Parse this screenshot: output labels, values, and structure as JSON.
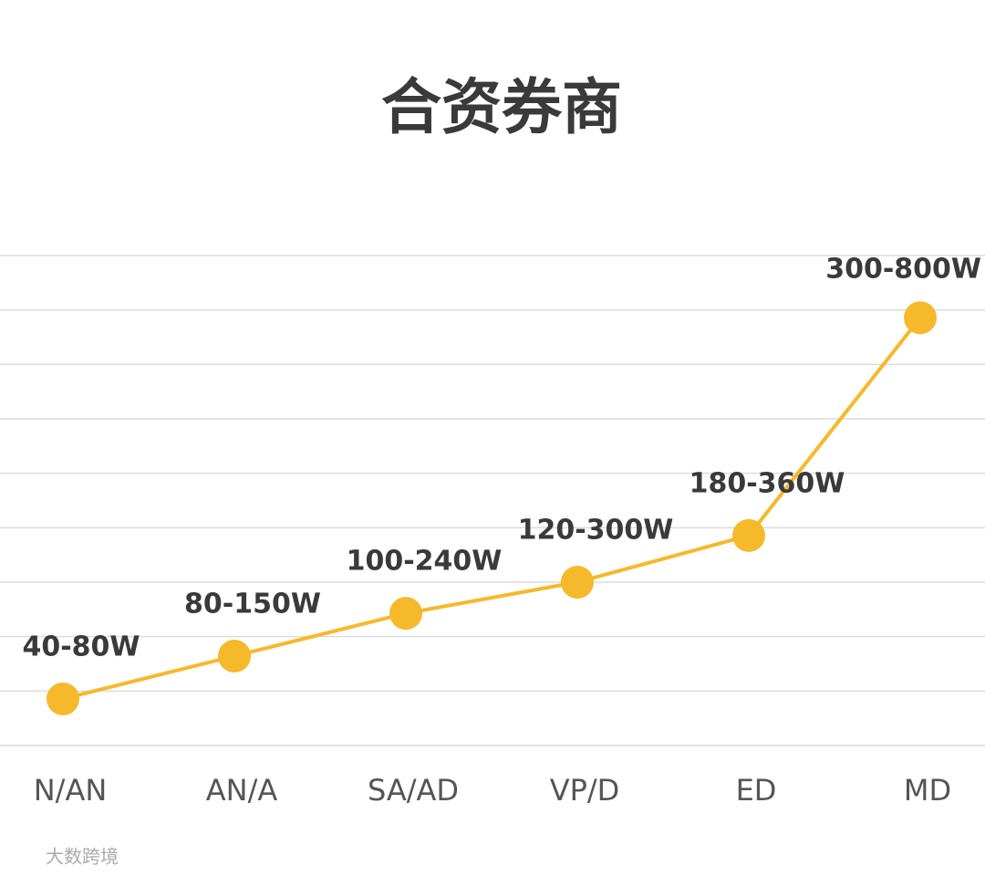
{
  "chart_data": {
    "type": "line",
    "title": "合资券商",
    "watermark": "大数跨境",
    "categories": [
      "N/AN",
      "AN/A",
      "SA/AD",
      "VP/D",
      "ED",
      "MD"
    ],
    "values": [
      60,
      115,
      170,
      210,
      270,
      550
    ],
    "value_labels": [
      "40-80W",
      "80-150W",
      "100-240W",
      "120-300W",
      "180-360W",
      "300-800W"
    ],
    "color": "#f6b92b",
    "ylim": [
      0,
      630
    ],
    "yticks": [
      0,
      70,
      140,
      210,
      280,
      350,
      420,
      490,
      560,
      630
    ],
    "grid": true
  }
}
